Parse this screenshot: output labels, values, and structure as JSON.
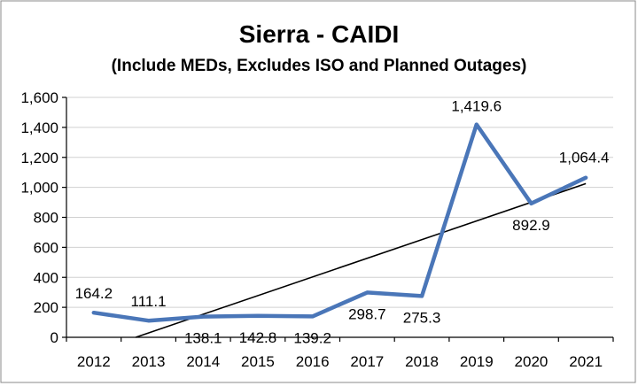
{
  "chart_data": {
    "type": "line",
    "title": "Sierra - CAIDI",
    "subtitle": "(Include MEDs, Excludes ISO and Planned Outages)",
    "categories": [
      "2012",
      "2013",
      "2014",
      "2015",
      "2016",
      "2017",
      "2018",
      "2019",
      "2020",
      "2021"
    ],
    "series": [
      {
        "values": [
          164.2,
          111.1,
          138.1,
          142.8,
          139.2,
          298.7,
          275.3,
          1419.6,
          892.9,
          1064.4
        ],
        "labels": [
          "164.2",
          "111.1",
          "138.1",
          "142.8",
          "139.2",
          "298.7",
          "275.3",
          "1,419.6",
          "892.9",
          "1,064.4"
        ],
        "color": "#4a76b8"
      }
    ],
    "trendline": {
      "type": "linear",
      "color": "#000000"
    },
    "ylim": [
      0,
      1600
    ],
    "yticks": [
      0,
      200,
      400,
      600,
      800,
      1000,
      1200,
      1400,
      1600
    ],
    "ytick_labels": [
      "0",
      "200",
      "400",
      "600",
      "800",
      "1,000",
      "1,200",
      "1,400",
      "1,600"
    ],
    "grid": true,
    "legend": "none"
  }
}
